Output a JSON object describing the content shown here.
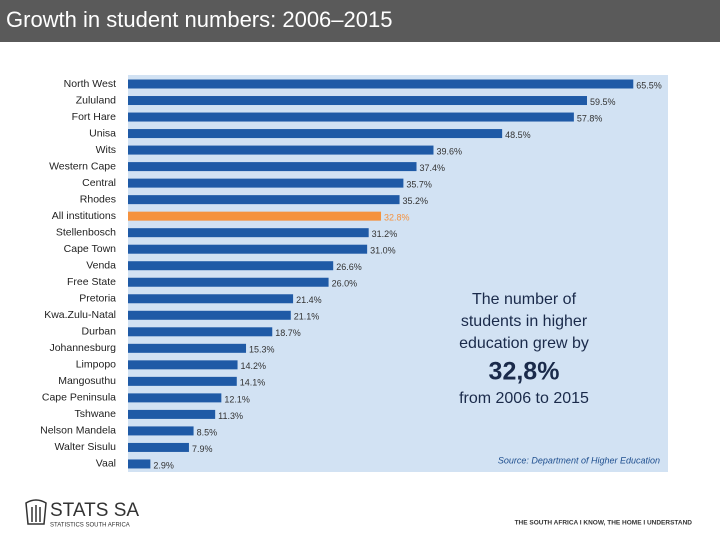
{
  "header": {
    "title": "Growth in student numbers: 2006–2015"
  },
  "chart_data": {
    "type": "bar",
    "orientation": "horizontal",
    "categories": [
      "North West",
      "Zululand",
      "Fort Hare",
      "Unisa",
      "Wits",
      "Western Cape",
      "Central",
      "Rhodes",
      "All institutions",
      "Stellenbosch",
      "Cape Town",
      "Venda",
      "Free State",
      "Pretoria",
      "Kwa.Zulu-Natal",
      "Durban",
      "Johannesburg",
      "Limpopo",
      "Mangosuthu",
      "Cape Peninsula",
      "Tshwane",
      "Nelson Mandela",
      "Walter Sisulu",
      "Vaal"
    ],
    "values": [
      65.5,
      59.5,
      57.8,
      48.5,
      39.6,
      37.4,
      35.7,
      35.2,
      32.8,
      31.2,
      31.0,
      26.6,
      26.0,
      21.4,
      21.1,
      18.7,
      15.3,
      14.2,
      14.1,
      12.1,
      11.3,
      8.5,
      7.9,
      2.9
    ],
    "value_labels": [
      "65.5%",
      "59.5%",
      "57.8%",
      "48.5%",
      "39.6%",
      "37.4%",
      "35.7%",
      "35.2%",
      "32.8%",
      "31.2%",
      "31.0%",
      "26.6%",
      "26.0%",
      "21.4%",
      "21.1%",
      "18.7%",
      "15.3%",
      "14.2%",
      "14.1%",
      "12.1%",
      "11.3%",
      "8.5%",
      "7.9%",
      "2.9%"
    ],
    "colors": [
      "#1f5aa6",
      "#1f5aa6",
      "#1f5aa6",
      "#1f5aa6",
      "#1f5aa6",
      "#1f5aa6",
      "#1f5aa6",
      "#1f5aa6",
      "#f5923e",
      "#1f5aa6",
      "#1f5aa6",
      "#1f5aa6",
      "#1f5aa6",
      "#1f5aa6",
      "#1f5aa6",
      "#1f5aa6",
      "#1f5aa6",
      "#1f5aa6",
      "#1f5aa6",
      "#1f5aa6",
      "#1f5aa6",
      "#1f5aa6",
      "#1f5aa6",
      "#1f5aa6"
    ],
    "xlim": [
      0,
      70
    ],
    "annotations": {
      "lead": [
        "The number of",
        "students in higher",
        "education grew by"
      ],
      "highlight": "32,8%",
      "tail": "from 2006 to 2015",
      "source": "Source: Department of Higher Education"
    }
  },
  "footer": {
    "logo": "STATS SA",
    "logo_sub": "STATISTICS SOUTH AFRICA",
    "slogan": "THE SOUTH AFRICA I KNOW, THE HOME I UNDERSTAND"
  }
}
